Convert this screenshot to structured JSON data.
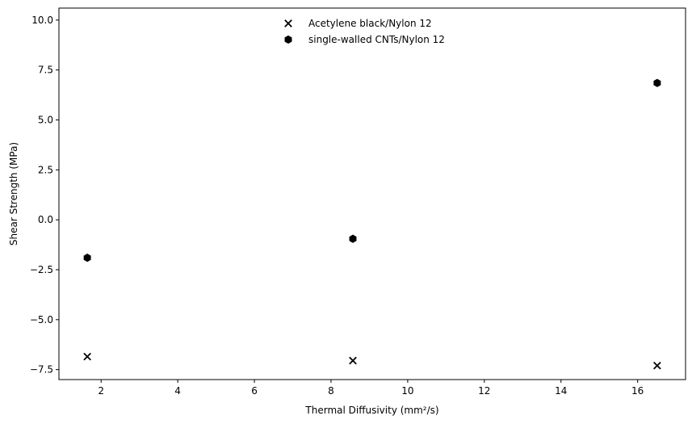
{
  "chart_data": {
    "type": "scatter",
    "title": "",
    "xlabel": "Thermal Diffusivity (mm²/s)",
    "ylabel": "Shear Strength (MPa)",
    "xlim": [
      0.9,
      17.25
    ],
    "ylim": [
      -8.0,
      10.6
    ],
    "xticks": [
      2,
      4,
      6,
      8,
      10,
      12,
      14,
      16
    ],
    "xtick_labels": [
      "2",
      "4",
      "6",
      "8",
      "10",
      "12",
      "14",
      "16"
    ],
    "yticks": [
      -7.5,
      -5.0,
      -2.5,
      0.0,
      2.5,
      5.0,
      7.5,
      10.0
    ],
    "ytick_labels": [
      "−7.5",
      "−5.0",
      "−2.5",
      "0.0",
      "2.5",
      "5.0",
      "7.5",
      "10.0"
    ],
    "grid": false,
    "legend_position": "upper center",
    "series": [
      {
        "name": "Acetylene black/Nylon 12",
        "marker": "x",
        "color": "#000000",
        "x": [
          1.64,
          8.57,
          16.51
        ],
        "y": [
          -6.85,
          -7.05,
          -7.3
        ]
      },
      {
        "name": "single-walled CNTs/Nylon 12",
        "marker": "hexagon",
        "color": "#000000",
        "x": [
          1.64,
          8.57,
          16.51
        ],
        "y": [
          -1.9,
          -0.95,
          6.85
        ]
      }
    ]
  }
}
